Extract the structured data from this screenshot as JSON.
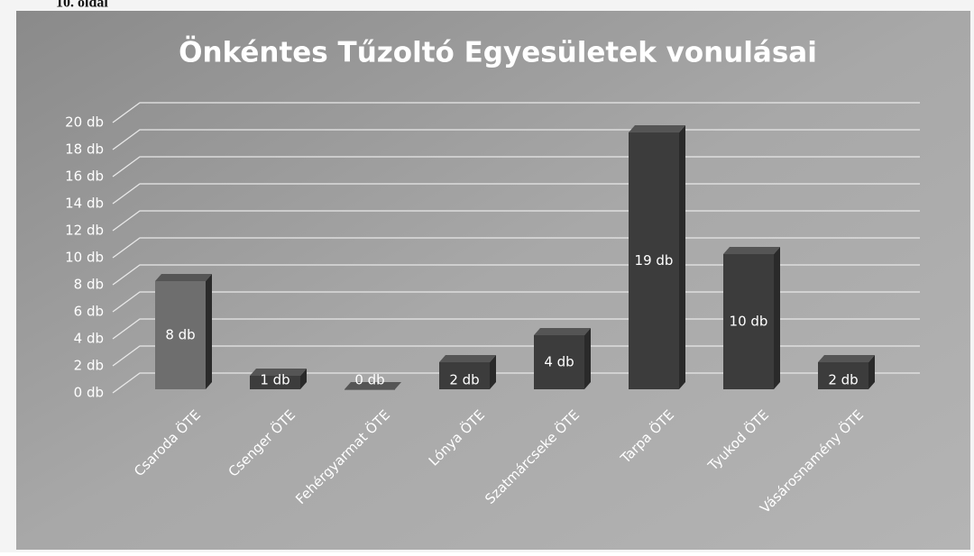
{
  "page_header": "10. oldal",
  "chart_data": {
    "type": "bar",
    "title": "Önkéntes Tűzoltó Egyesületek vonulásai",
    "categories": [
      "Csaroda ÖTE",
      "Csenger ÖTE",
      "Fehérgyarmat ÖTE",
      "Lónya ÖTE",
      "Szatmárcseke ÖTE",
      "Tarpa ÖTE",
      "Tyukod ÖTE",
      "Vásárosnamény ÖTE"
    ],
    "values": [
      8,
      1,
      0,
      2,
      4,
      19,
      10,
      2
    ],
    "value_labels": [
      "8 db",
      "1 db",
      "0 db",
      "2 db",
      "4 db",
      "19 db",
      "10 db",
      "2 db"
    ],
    "colors": [
      "#6e6e6e",
      "#3c3c3c",
      "#3c3c3c",
      "#3c3c3c",
      "#3c3c3c",
      "#3c3c3c",
      "#3c3c3c",
      "#3c3c3c"
    ],
    "ylim": [
      0,
      20
    ],
    "yticks": [
      {
        "value": 0,
        "label": "0 db"
      },
      {
        "value": 2,
        "label": "2 db"
      },
      {
        "value": 4,
        "label": "4 db"
      },
      {
        "value": 6,
        "label": "6 db"
      },
      {
        "value": 8,
        "label": "8 db"
      },
      {
        "value": 10,
        "label": "10 db"
      },
      {
        "value": 12,
        "label": "12 db"
      },
      {
        "value": 14,
        "label": "14 db"
      },
      {
        "value": 16,
        "label": "16 db"
      },
      {
        "value": 18,
        "label": "18 db"
      },
      {
        "value": 20,
        "label": "20 db"
      }
    ],
    "grid": true
  }
}
